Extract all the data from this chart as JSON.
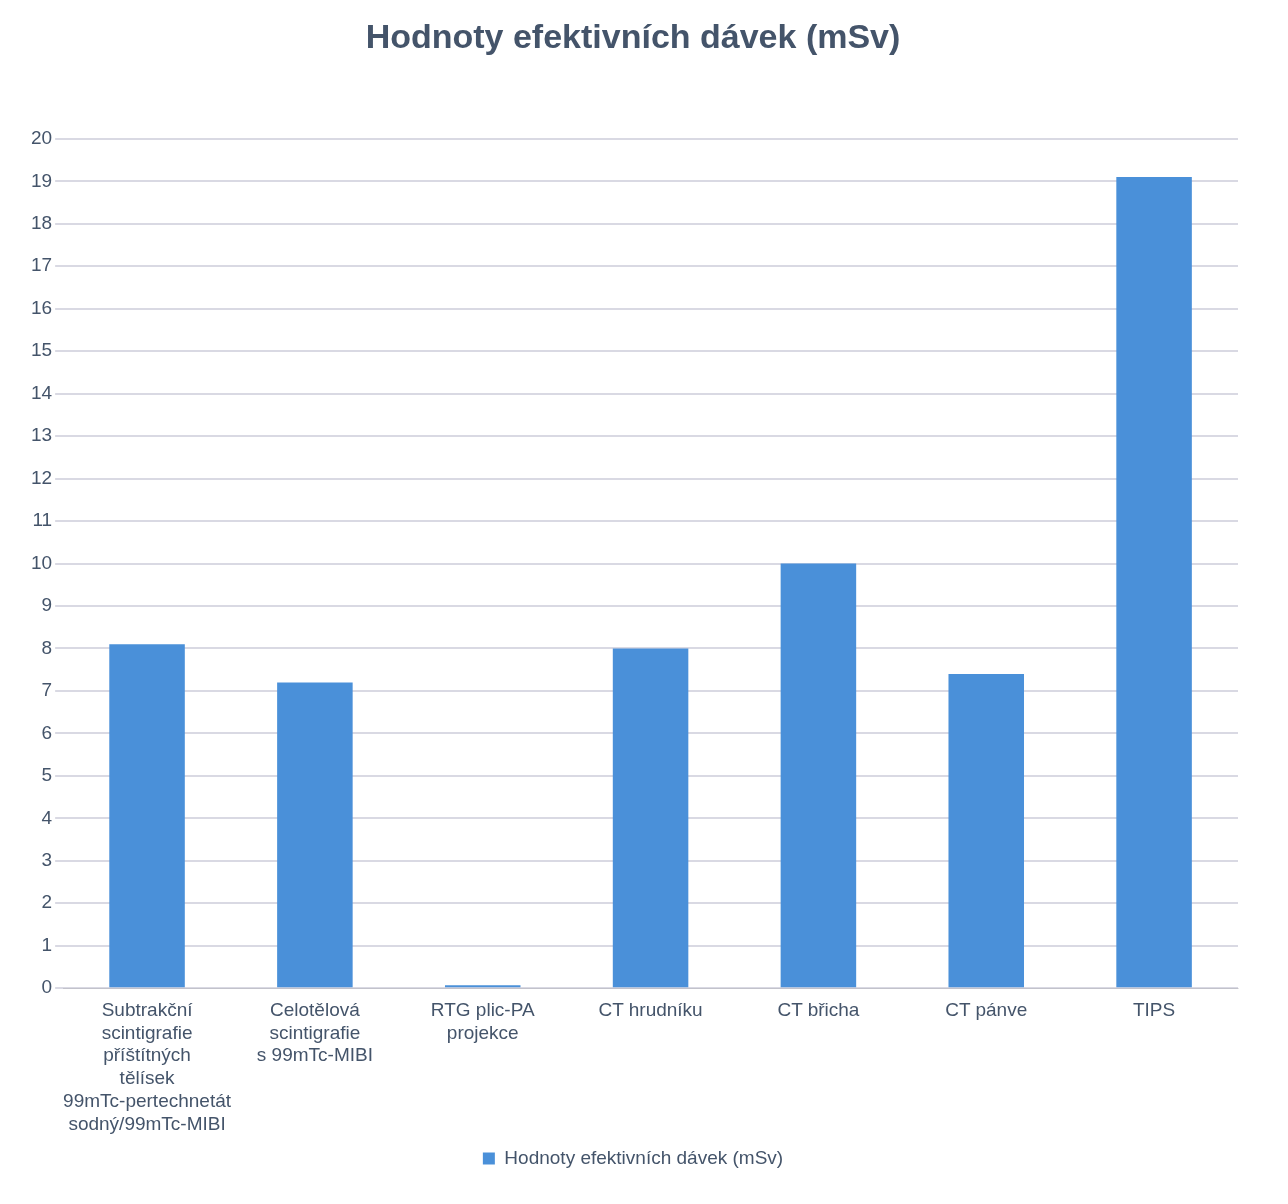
{
  "chart_data": {
    "type": "bar",
    "title": "Hodnoty efektivních dávek (mSv)",
    "categories": [
      "Subtrakční scintigrafie příštítných tělísek 99mTc-pertechnetát sodný/99mTc-MIBI",
      "Celotělová scintigrafie s 99mTc-MIBI",
      "RTG plic-PA projekce",
      "CT hrudníku",
      "CT břicha",
      "CT pánve",
      "TIPS"
    ],
    "series": [
      {
        "name": "Hodnoty efektivních dávek (mSv)",
        "color": "#4a90d9",
        "values": [
          8.1,
          7.2,
          0.02,
          8.0,
          10.0,
          7.4,
          19.1
        ]
      }
    ],
    "ylim": [
      0,
      20
    ],
    "yticks": [
      0,
      1,
      2,
      3,
      4,
      5,
      6,
      7,
      8,
      9,
      10,
      11,
      12,
      13,
      14,
      15,
      16,
      17,
      18,
      19,
      20
    ],
    "grid": "y",
    "legend": "bottom"
  }
}
